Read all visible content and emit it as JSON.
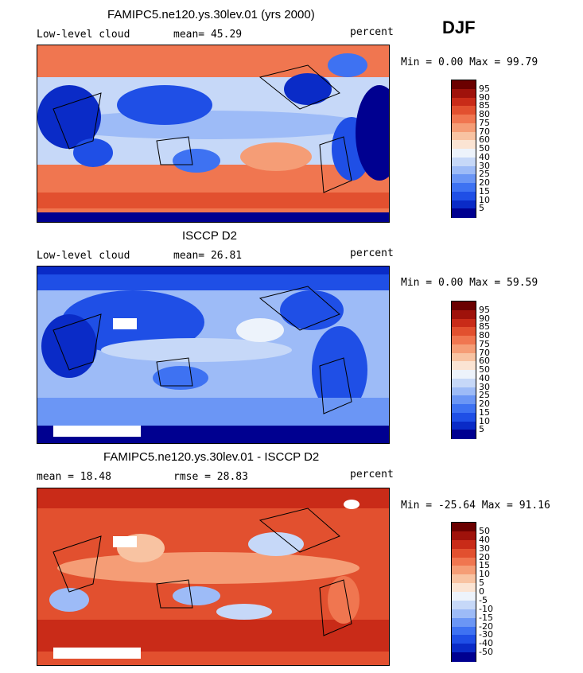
{
  "season": "DJF",
  "colors": {
    "scale": [
      "#000090",
      "#0a2bc7",
      "#1f4fe6",
      "#3e72f2",
      "#6b96f5",
      "#9dbbf7",
      "#c6d8f8",
      "#edf3fb",
      "#fbe4d3",
      "#f8c3a2",
      "#f59d76",
      "#f07650",
      "#e2502f",
      "#c92b18",
      "#9f120b",
      "#6b0000"
    ]
  },
  "panels": [
    {
      "title": "FAMIPC5.ne120.ys.30lev.01 (yrs 2000)",
      "left_label": "Low-level cloud",
      "mid_label": "mean=  45.29",
      "right_label": "percent",
      "minmax": "Min =   0.00 Max =  99.79",
      "colorbar_labels": [
        "95",
        "90",
        "85",
        "80",
        "75",
        "70",
        "60",
        "50",
        "40",
        "30",
        "25",
        "20",
        "15",
        "10",
        "5"
      ]
    },
    {
      "title": "ISCCP D2",
      "left_label": "Low-level cloud",
      "mid_label": "mean=  26.81",
      "right_label": "percent",
      "minmax": "Min =   0.00 Max =  59.59",
      "colorbar_labels": [
        "95",
        "90",
        "85",
        "80",
        "75",
        "70",
        "60",
        "50",
        "40",
        "30",
        "25",
        "20",
        "15",
        "10",
        "5"
      ]
    },
    {
      "title": "FAMIPC5.ne120.ys.30lev.01 - ISCCP D2",
      "left_label": "mean =  18.48",
      "mid_label": "rmse =  28.83",
      "right_label": "percent",
      "minmax": "Min = -25.64 Max =  91.16",
      "colorbar_labels": [
        "50",
        "40",
        "30",
        "20",
        "15",
        "10",
        "5",
        "0",
        "-5",
        "-10",
        "-15",
        "-20",
        "-30",
        "-40",
        "-50"
      ]
    }
  ]
}
